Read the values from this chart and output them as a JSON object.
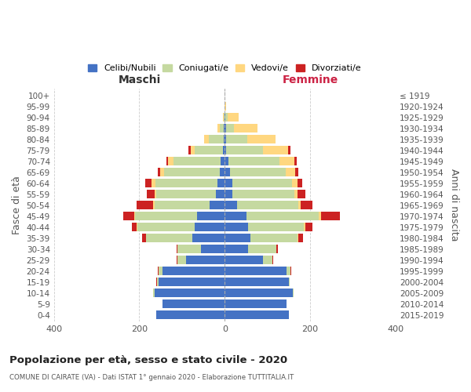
{
  "age_groups": [
    "0-4",
    "5-9",
    "10-14",
    "15-19",
    "20-24",
    "25-29",
    "30-34",
    "35-39",
    "40-44",
    "45-49",
    "50-54",
    "55-59",
    "60-64",
    "65-69",
    "70-74",
    "75-79",
    "80-84",
    "85-89",
    "90-94",
    "95-99",
    "100+"
  ],
  "birth_years": [
    "2015-2019",
    "2010-2014",
    "2005-2009",
    "2000-2004",
    "1995-1999",
    "1990-1994",
    "1985-1989",
    "1980-1984",
    "1975-1979",
    "1970-1974",
    "1965-1969",
    "1960-1964",
    "1955-1959",
    "1950-1954",
    "1945-1949",
    "1940-1944",
    "1935-1939",
    "1930-1934",
    "1925-1929",
    "1920-1924",
    "≤ 1919"
  ],
  "maschi": {
    "celibi": [
      160,
      145,
      165,
      155,
      145,
      90,
      55,
      75,
      70,
      65,
      35,
      20,
      18,
      12,
      10,
      5,
      3,
      2,
      0,
      0,
      0
    ],
    "coniugati": [
      0,
      0,
      2,
      3,
      10,
      20,
      55,
      110,
      135,
      145,
      130,
      140,
      145,
      130,
      110,
      65,
      35,
      10,
      3,
      0,
      0
    ],
    "vedovi": [
      0,
      0,
      0,
      0,
      0,
      0,
      0,
      0,
      1,
      2,
      3,
      5,
      8,
      10,
      12,
      10,
      10,
      5,
      2,
      0,
      0
    ],
    "divorziati": [
      0,
      0,
      0,
      2,
      2,
      3,
      3,
      8,
      12,
      25,
      38,
      18,
      15,
      5,
      5,
      5,
      0,
      0,
      0,
      0,
      0
    ]
  },
  "femmine": {
    "nubili": [
      150,
      145,
      160,
      150,
      145,
      90,
      55,
      60,
      55,
      50,
      28,
      18,
      18,
      12,
      8,
      4,
      3,
      3,
      2,
      0,
      0
    ],
    "coniugate": [
      0,
      0,
      2,
      2,
      8,
      22,
      65,
      110,
      130,
      170,
      145,
      145,
      140,
      130,
      120,
      85,
      50,
      18,
      5,
      0,
      0
    ],
    "vedove": [
      0,
      0,
      0,
      0,
      0,
      0,
      0,
      2,
      3,
      5,
      5,
      8,
      12,
      22,
      35,
      60,
      65,
      55,
      25,
      3,
      0
    ],
    "divorziate": [
      0,
      0,
      0,
      0,
      2,
      2,
      5,
      12,
      18,
      45,
      28,
      18,
      12,
      8,
      5,
      5,
      0,
      0,
      0,
      0,
      0
    ]
  },
  "colors": {
    "celibi": "#4472c4",
    "coniugati": "#c5d9a0",
    "vedovi": "#ffd780",
    "divorziati": "#cc2222"
  },
  "xlim": 400,
  "title": "Popolazione per età, sesso e stato civile - 2020",
  "subtitle": "COMUNE DI CAIRATE (VA) - Dati ISTAT 1° gennaio 2020 - Elaborazione TUTTITALIA.IT",
  "ylabel_left": "Fasce di età",
  "ylabel_right": "Anni di nascita",
  "xlabel_left": "Maschi",
  "xlabel_right": "Femmine",
  "legend_labels": [
    "Celibi/Nubili",
    "Coniugati/e",
    "Vedovi/e",
    "Divorziati/e"
  ],
  "bg_color": "#ffffff"
}
